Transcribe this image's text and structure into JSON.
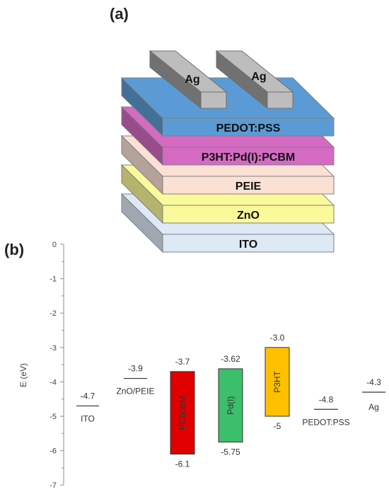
{
  "panel_a": {
    "label": "(a)",
    "electrodes": [
      {
        "label": "Ag",
        "color": "#bdbdbd"
      },
      {
        "label": "Ag",
        "color": "#bdbdbd"
      }
    ],
    "layers": [
      {
        "label": "PEDOT:PSS",
        "color": "#5b9bd5"
      },
      {
        "label": "P3HT:Pd(I):PCBM",
        "color": "#d56ac2"
      },
      {
        "label": "PEIE",
        "color": "#fbe1d4"
      },
      {
        "label": "ZnO",
        "color": "#fafa9a"
      },
      {
        "label": "ITO",
        "color": "#dde9f5"
      }
    ]
  },
  "panel_b": {
    "label": "(b)"
  },
  "chart_data": {
    "type": "energy-level diagram",
    "ylabel": "E (eV)",
    "ylim": [
      -7,
      0
    ],
    "yticks": [
      "0",
      "-1",
      "-2",
      "-3",
      "-4",
      "-5",
      "-6",
      "-7"
    ],
    "lines": [
      {
        "name": "ITO",
        "value": -4.7,
        "label": "-4.7"
      },
      {
        "name": "ZnO/PEIE",
        "value": -3.9,
        "label": "-3.9"
      },
      {
        "name": "PEDOT:PSS",
        "value": -4.8,
        "label": "-4.8"
      },
      {
        "name": "Ag",
        "value": -4.3,
        "label": "-4.3"
      }
    ],
    "bars": [
      {
        "name": "PC60BM",
        "lumo": -3.7,
        "homo": -6.1,
        "lumo_label": "-3.7",
        "homo_label": "-6.1",
        "color": "#e00000"
      },
      {
        "name": "Pd(I)",
        "lumo": -3.62,
        "homo": -5.75,
        "lumo_label": "-3.62",
        "homo_label": "-5.75",
        "color": "#3bbf6a"
      },
      {
        "name": "P3HT",
        "lumo": -3.0,
        "homo": -5.0,
        "lumo_label": "-3.0",
        "homo_label": "-5",
        "color": "#ffc000"
      }
    ]
  }
}
